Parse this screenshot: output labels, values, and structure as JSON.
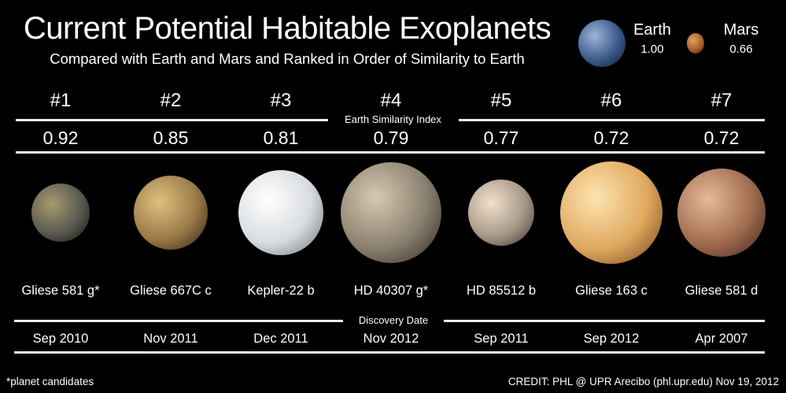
{
  "header": {
    "title": "Current Potential Habitable Exoplanets",
    "subtitle": "Compared with Earth and Mars and Ranked in Order of Similarity to Earth"
  },
  "reference": [
    {
      "name": "Earth",
      "esi": "1.00",
      "colors": [
        "#9fb4d8",
        "#3a5a8a",
        "#0d1a30"
      ]
    },
    {
      "name": "Mars",
      "esi": "0.66",
      "colors": [
        "#e0a060",
        "#a8602a",
        "#3a1a08"
      ]
    }
  ],
  "sections": {
    "esi_label": "Earth Similarity Index",
    "date_label": "Discovery Date"
  },
  "planets": [
    {
      "rank": "#1",
      "esi": "0.92",
      "name": "Gliese 581 g*",
      "date": "Sep 2010",
      "colors": [
        "#a89a70",
        "#5a5a52",
        "#121208"
      ]
    },
    {
      "rank": "#2",
      "esi": "0.85",
      "name": "Gliese 667C c",
      "date": "Nov 2011",
      "colors": [
        "#e0c080",
        "#9a7a48",
        "#2a1e10"
      ]
    },
    {
      "rank": "#3",
      "esi": "0.81",
      "name": "Kepler-22 b",
      "date": "Dec 2011",
      "colors": [
        "#ffffff",
        "#d8dce0",
        "#6a6e74"
      ]
    },
    {
      "rank": "#4",
      "esi": "0.79",
      "name": "HD 40307 g*",
      "date": "Nov 2012",
      "colors": [
        "#d8c8b0",
        "#8a8070",
        "#2a241c"
      ]
    },
    {
      "rank": "#5",
      "esi": "0.77",
      "name": "HD 85512 b",
      "date": "Sep 2011",
      "colors": [
        "#f0e0cc",
        "#a89888",
        "#3a3028"
      ]
    },
    {
      "rank": "#6",
      "esi": "0.72",
      "name": "Gliese 163 c",
      "date": "Sep 2012",
      "colors": [
        "#fde4b0",
        "#e0a860",
        "#6a4018"
      ]
    },
    {
      "rank": "#7",
      "esi": "0.72",
      "name": "Gliese 581 d",
      "date": "Apr 2007",
      "colors": [
        "#e8b898",
        "#a06c50",
        "#3a2014"
      ]
    }
  ],
  "footer": {
    "note": "*planet candidates",
    "credit": "CREDIT: PHL @ UPR Arecibo (phl.upr.edu) Nov 19, 2012"
  }
}
